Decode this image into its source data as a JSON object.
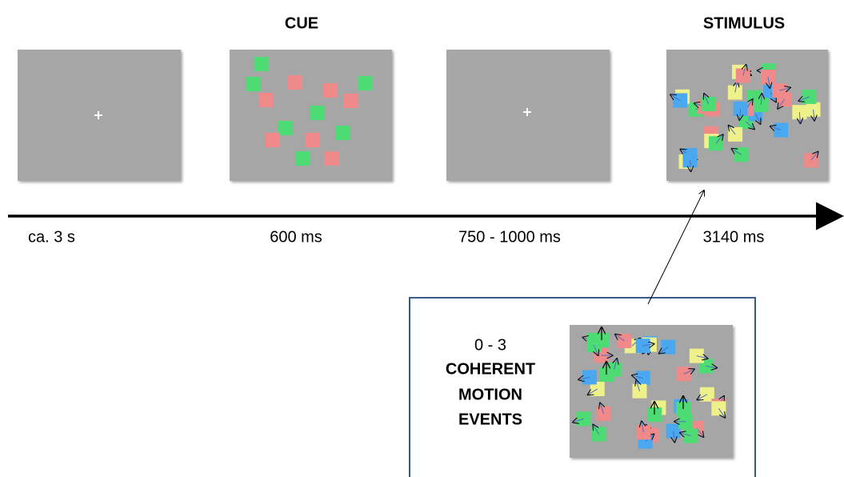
{
  "titles": {
    "cue": "CUE",
    "stimulus": "STIMULUS"
  },
  "durations": [
    "ca. 3 s",
    "600 ms",
    "750 - 1000 ms",
    "3140 ms"
  ],
  "inset": {
    "count": "0 - 3",
    "label": [
      "COHERENT",
      "MOTION",
      "EVENTS"
    ]
  }
}
